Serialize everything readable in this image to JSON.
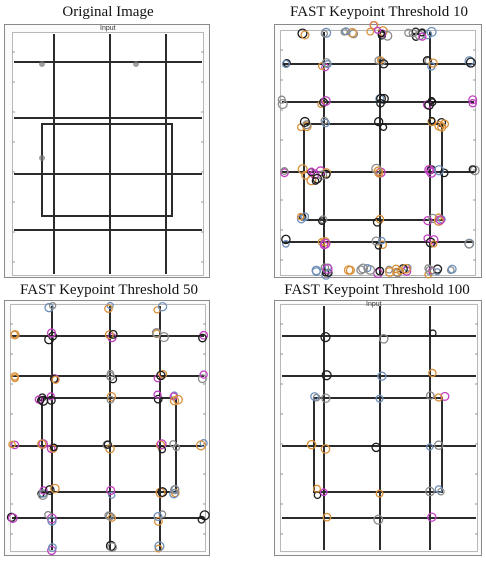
{
  "captions": {
    "original": "Original Image",
    "t10": "FAST Keypoint Threshold 10",
    "t50": "FAST Keypoint Threshold 50",
    "t100": "FAST Keypoint Threshold 100"
  },
  "panel_label": "Input",
  "colors": {
    "grid_line": "#2b2b2b",
    "keypoint_palette": [
      "#c040c0",
      "#d8903a",
      "#6e8fb8",
      "#1a1a1a",
      "#8a8a8a"
    ]
  }
}
